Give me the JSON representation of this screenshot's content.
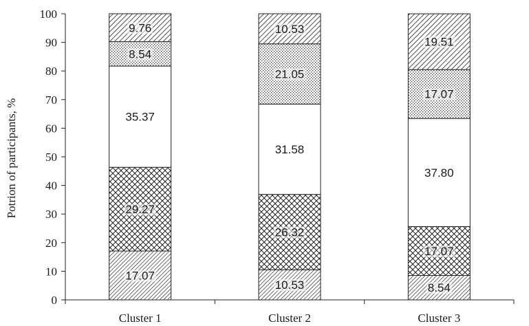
{
  "chart_data": {
    "type": "bar",
    "stacked": true,
    "title": "",
    "xlabel": "",
    "ylabel": "Potrion of participants, %",
    "ylim": [
      0,
      100
    ],
    "yticks": [
      "0",
      "10",
      "20",
      "30",
      "40",
      "50",
      "60",
      "70",
      "80",
      "90",
      "100"
    ],
    "grid": false,
    "legend": "none",
    "categories": [
      "Cluster 1",
      "Cluster 2",
      "Cluster 3"
    ],
    "series": [
      {
        "pattern": "diagonal-dense",
        "values": [
          17.07,
          10.53,
          8.54
        ],
        "labels": [
          "17.07",
          "10.53",
          "8.54"
        ]
      },
      {
        "pattern": "crosshatch",
        "values": [
          29.27,
          26.32,
          17.07
        ],
        "labels": [
          "29.27",
          "26.32",
          "17.07"
        ]
      },
      {
        "pattern": "plain",
        "values": [
          35.37,
          31.58,
          37.8
        ],
        "labels": [
          "35.37",
          "31.58",
          "37.80"
        ]
      },
      {
        "pattern": "dots",
        "values": [
          8.54,
          21.05,
          17.07
        ],
        "labels": [
          "8.54",
          "21.05",
          "17.07"
        ]
      },
      {
        "pattern": "diagonal-wide",
        "values": [
          9.76,
          10.53,
          19.51
        ],
        "labels": [
          "9.76",
          "10.53",
          "19.51"
        ]
      }
    ],
    "colors": {
      "stroke": "#222222",
      "fill": "#ffffff",
      "label_bg": "#ffffff"
    }
  }
}
